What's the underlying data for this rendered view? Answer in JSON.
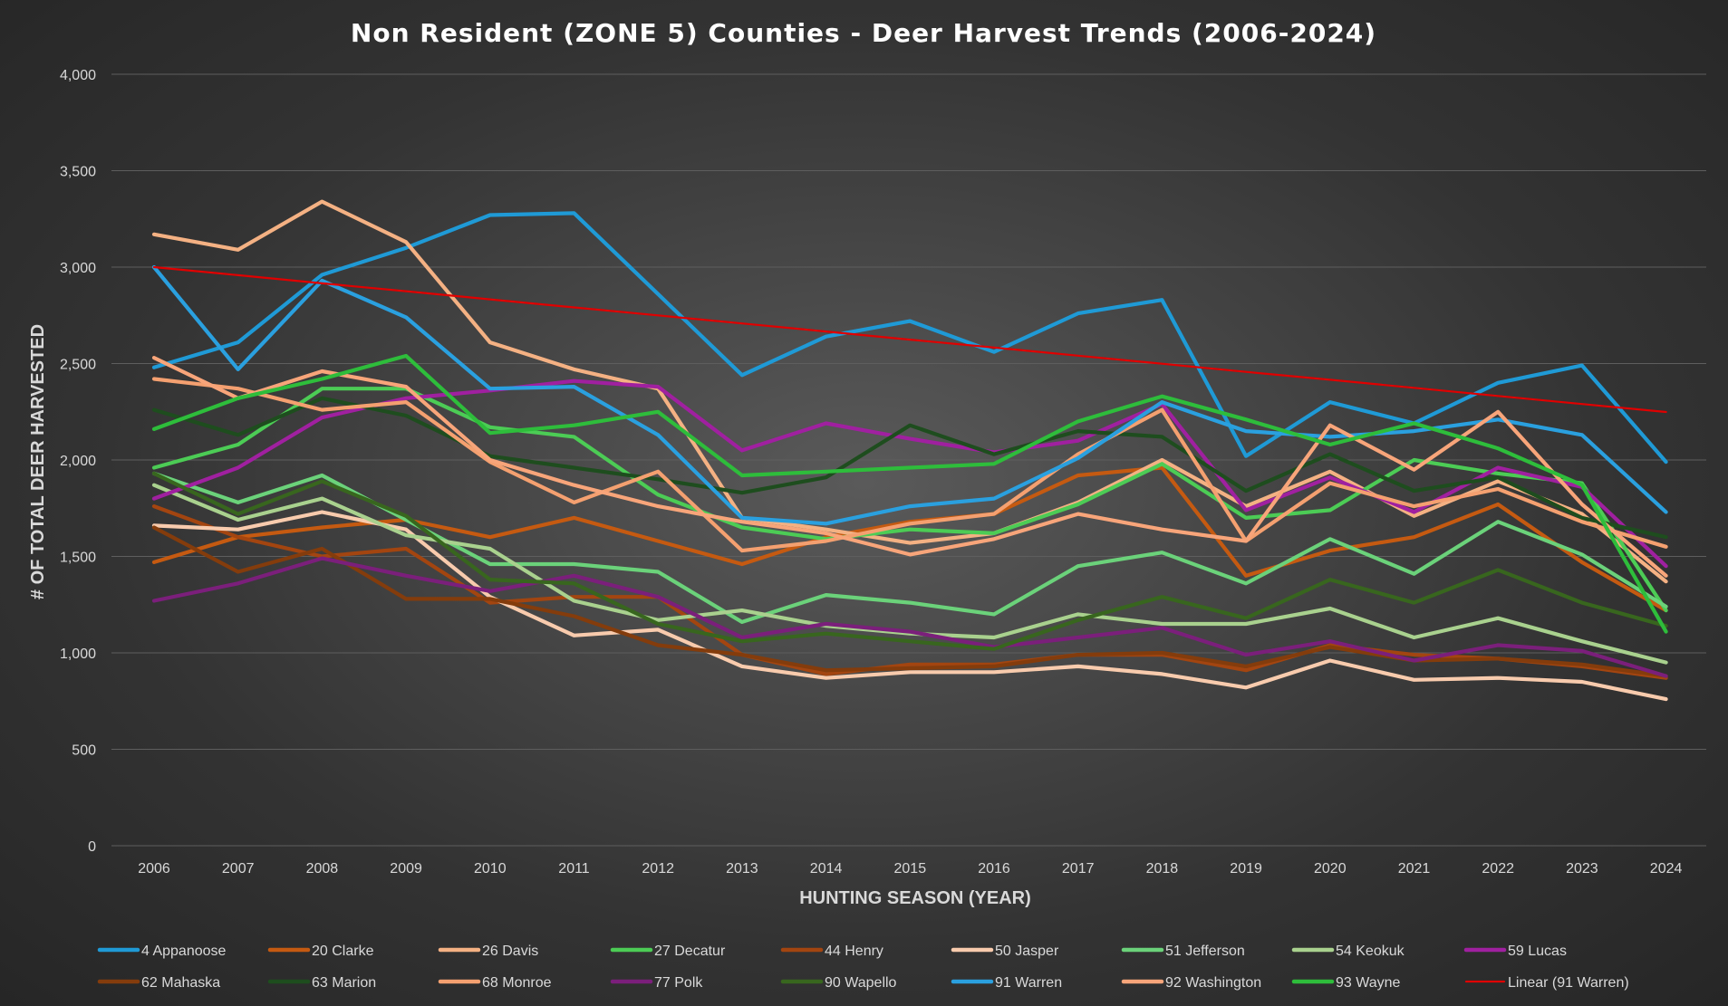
{
  "chart_data": {
    "type": "line",
    "title": "Non Resident (ZONE 5) Counties - Deer Harvest Trends (2006-2024)",
    "xlabel": "HUNTING SEASON (YEAR)",
    "ylabel": "# OF TOTAL DEER HARVESTED",
    "ylim": [
      0,
      4000
    ],
    "y_ticks": [
      "0",
      "500",
      "1,000",
      "1,500",
      "2,000",
      "2,500",
      "3,000",
      "3,500",
      "4,000"
    ],
    "grid": true,
    "legend_position": "bottom",
    "categories": [
      "2006",
      "2007",
      "2008",
      "2009",
      "2010",
      "2011",
      "2012",
      "2013",
      "2014",
      "2015",
      "2016",
      "2017",
      "2018",
      "2019",
      "2020",
      "2021",
      "2022",
      "2023",
      "2024"
    ],
    "series": [
      {
        "name": "4 Appanoose",
        "color": "#1f9ad6",
        "values": [
          2480,
          2610,
          2960,
          3100,
          3270,
          3280,
          2860,
          2440,
          2640,
          2720,
          2560,
          2760,
          2830,
          2020,
          2300,
          2190,
          2400,
          2490,
          1990
        ]
      },
      {
        "name": "20 Clarke",
        "color": "#c55a11",
        "values": [
          1470,
          1600,
          1650,
          1690,
          1600,
          1700,
          1580,
          1460,
          1600,
          1680,
          1720,
          1920,
          1960,
          1400,
          1530,
          1600,
          1770,
          1470,
          1220
        ]
      },
      {
        "name": "26 Davis",
        "color": "#f4b183",
        "values": [
          3170,
          3090,
          3340,
          3130,
          2610,
          2470,
          2370,
          1700,
          1640,
          1570,
          1620,
          1780,
          2000,
          1760,
          1940,
          1710,
          1890,
          1720,
          1370
        ]
      },
      {
        "name": "27 Decatur",
        "color": "#4ccc55",
        "values": [
          1960,
          2080,
          2370,
          2370,
          2170,
          2120,
          1820,
          1650,
          1590,
          1640,
          1620,
          1770,
          1980,
          1700,
          1740,
          2000,
          1930,
          1880,
          1220
        ]
      },
      {
        "name": "44 Henry",
        "color": "#a34510",
        "values": [
          1760,
          1600,
          1500,
          1540,
          1260,
          1290,
          1290,
          990,
          890,
          940,
          940,
          990,
          990,
          910,
          1040,
          990,
          970,
          930,
          870
        ]
      },
      {
        "name": "50 Jasper",
        "color": "#f8cbad",
        "values": [
          1660,
          1640,
          1730,
          1640,
          1290,
          1090,
          1120,
          930,
          870,
          900,
          900,
          930,
          890,
          820,
          960,
          860,
          870,
          850,
          760
        ]
      },
      {
        "name": "51 Jefferson",
        "color": "#6bd27a",
        "values": [
          1930,
          1780,
          1920,
          1690,
          1460,
          1460,
          1420,
          1160,
          1300,
          1260,
          1200,
          1450,
          1520,
          1360,
          1590,
          1410,
          1680,
          1510,
          1240
        ]
      },
      {
        "name": "54 Keokuk",
        "color": "#a9d18e",
        "values": [
          1870,
          1690,
          1800,
          1610,
          1540,
          1270,
          1170,
          1220,
          1140,
          1100,
          1080,
          1200,
          1150,
          1150,
          1230,
          1080,
          1180,
          1060,
          950
        ]
      },
      {
        "name": "59 Lucas",
        "color": "#a020a0",
        "values": [
          1800,
          1960,
          2220,
          2320,
          2360,
          2410,
          2380,
          2050,
          2190,
          2110,
          2040,
          2100,
          2290,
          1740,
          1910,
          1730,
          1960,
          1860,
          1450
        ]
      },
      {
        "name": "62 Mahaska",
        "color": "#843c0c",
        "values": [
          1650,
          1420,
          1540,
          1280,
          1280,
          1190,
          1040,
          990,
          910,
          920,
          930,
          990,
          1000,
          930,
          1030,
          960,
          970,
          940,
          880
        ]
      },
      {
        "name": "63 Marion",
        "color": "#1e4d1e",
        "values": [
          2260,
          2130,
          2320,
          2230,
          2020,
          1960,
          1900,
          1830,
          1910,
          2180,
          2030,
          2150,
          2120,
          1840,
          2030,
          1840,
          1910,
          1700,
          1600
        ]
      },
      {
        "name": "68 Monroe",
        "color": "#f4a070",
        "values": [
          2420,
          2370,
          2260,
          2300,
          1990,
          1780,
          1940,
          1530,
          1580,
          1670,
          1720,
          2030,
          2260,
          1580,
          1880,
          1760,
          1850,
          1680,
          1550
        ]
      },
      {
        "name": "77 Polk",
        "color": "#7b1f7b",
        "values": [
          1270,
          1360,
          1490,
          1400,
          1320,
          1400,
          1290,
          1080,
          1150,
          1110,
          1030,
          1080,
          1130,
          990,
          1060,
          960,
          1040,
          1010,
          880
        ]
      },
      {
        "name": "90 Wapello",
        "color": "#38661e",
        "values": [
          1930,
          1720,
          1890,
          1710,
          1380,
          1360,
          1150,
          1060,
          1100,
          1060,
          1020,
          1170,
          1290,
          1180,
          1380,
          1260,
          1430,
          1260,
          1140
        ]
      },
      {
        "name": "91 Warren",
        "color": "#2aa0df",
        "values": [
          3000,
          2470,
          2930,
          2740,
          2370,
          2380,
          2130,
          1700,
          1670,
          1760,
          1800,
          2010,
          2300,
          2150,
          2120,
          2150,
          2210,
          2130,
          1730
        ]
      },
      {
        "name": "92 Washington",
        "color": "#f8a57a",
        "values": [
          2530,
          2320,
          2460,
          2380,
          2000,
          1870,
          1760,
          1680,
          1620,
          1510,
          1590,
          1720,
          1640,
          1580,
          2180,
          1950,
          2250,
          1770,
          1400
        ]
      },
      {
        "name": "93 Wayne",
        "color": "#2ebd3b",
        "values": [
          2160,
          2320,
          2420,
          2540,
          2140,
          2180,
          2250,
          1920,
          1940,
          1960,
          1980,
          2200,
          2330,
          2210,
          2080,
          2190,
          2060,
          1870,
          1110
        ]
      },
      {
        "name": "Linear (91 Warren)",
        "color": "#e00000",
        "trendline": true,
        "values": [
          3000,
          2958,
          2916,
          2875,
          2833,
          2791,
          2750,
          2708,
          2666,
          2624,
          2583,
          2541,
          2499,
          2457,
          2416,
          2374,
          2332,
          2290,
          2249
        ]
      }
    ]
  }
}
